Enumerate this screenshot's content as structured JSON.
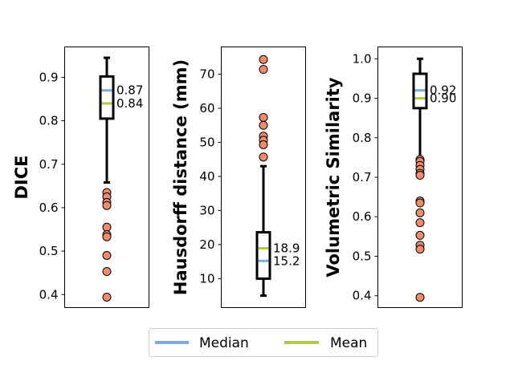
{
  "chart_data": [
    {
      "type": "box",
      "ylabel": "DICE",
      "ylim": [
        0.37,
        0.97
      ],
      "yticks": [
        0.4,
        0.5,
        0.6,
        0.7,
        0.8,
        0.9
      ],
      "ytick_labels": [
        "0.4",
        "0.5",
        "0.6",
        "0.7",
        "0.8",
        "0.9"
      ],
      "q1": 0.805,
      "q3": 0.902,
      "whisker_low": 0.658,
      "whisker_high": 0.945,
      "median": 0.87,
      "mean": 0.84,
      "median_label": "0.87",
      "mean_label": "0.84",
      "outliers": [
        0.635,
        0.625,
        0.612,
        0.605,
        0.555,
        0.538,
        0.533,
        0.49,
        0.453,
        0.394
      ]
    },
    {
      "type": "box",
      "ylabel": "Hausdorff distance (mm)",
      "ylim": [
        1.5,
        78.0
      ],
      "yticks": [
        10,
        20,
        30,
        40,
        50,
        60,
        70
      ],
      "ytick_labels": [
        "10",
        "20",
        "30",
        "40",
        "50",
        "60",
        "70"
      ],
      "q1": 10.0,
      "q3": 23.6,
      "whisker_low": 5.0,
      "whisker_high": 43.0,
      "median": 15.2,
      "mean": 18.9,
      "median_label": "15.2",
      "mean_label": "18.9",
      "outliers": [
        74.3,
        71.4,
        57.3,
        55.0,
        51.8,
        50.6,
        49.3,
        45.7
      ]
    },
    {
      "type": "box",
      "ylabel": "Volumetric Similarity",
      "ylim": [
        0.37,
        1.03
      ],
      "yticks": [
        0.4,
        0.5,
        0.6,
        0.7,
        0.8,
        0.9,
        1.0
      ],
      "ytick_labels": [
        "0.4",
        "0.5",
        "0.6",
        "0.7",
        "0.8",
        "0.9",
        "1.0"
      ],
      "q1": 0.875,
      "q3": 0.962,
      "whisker_low": 0.75,
      "whisker_high": 1.0,
      "median": 0.92,
      "mean": 0.9,
      "median_label": "0.92",
      "mean_label": "0.90",
      "outliers": [
        0.745,
        0.74,
        0.73,
        0.72,
        0.71,
        0.705,
        0.64,
        0.635,
        0.61,
        0.585,
        0.553,
        0.528,
        0.518,
        0.396
      ]
    }
  ],
  "legend": {
    "items": [
      {
        "label": "Median",
        "color": "#7aace0"
      },
      {
        "label": "Mean",
        "color": "#b5cc33"
      }
    ]
  },
  "colors": {
    "median": "#7aace0",
    "mean": "#b5cc33",
    "outlier_fill": "#f08c6c",
    "box": "#000000"
  }
}
